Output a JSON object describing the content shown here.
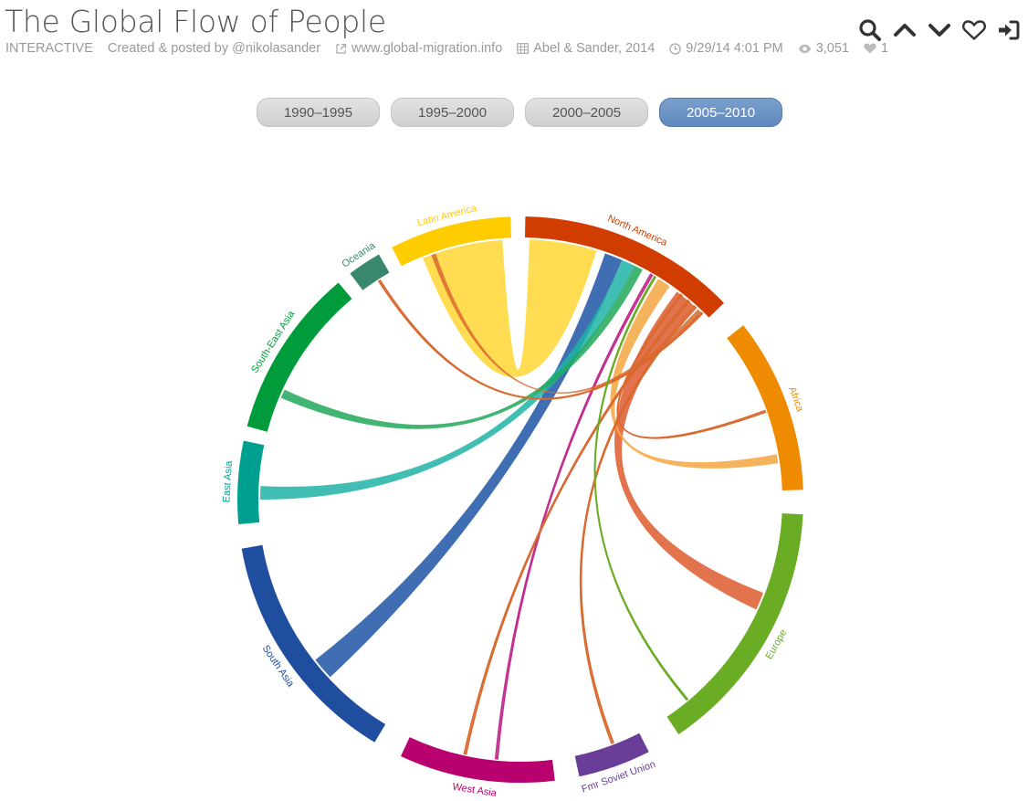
{
  "header": {
    "title": "The Global Flow of People",
    "type_label": "INTERACTIVE",
    "author": "Created & posted by @nikolasander",
    "website": "www.global-migration.info",
    "source": "Abel & Sander, 2014",
    "timestamp": "9/29/14 4:01 PM",
    "views": "3,051",
    "likes": "1"
  },
  "toolbar": {
    "icons": [
      "search-icon",
      "chevron-up-icon",
      "chevron-down-icon",
      "heart-icon",
      "sign-in-icon"
    ]
  },
  "periods": {
    "items": [
      {
        "label": "1990–1995"
      },
      {
        "label": "1995–2000"
      },
      {
        "label": "2000–2005"
      },
      {
        "label": "2005–2010"
      }
    ],
    "active": "2005–2010"
  },
  "chart": {
    "regions": [
      {
        "name": "North America",
        "color": "#d13d00",
        "start_deg": 1,
        "end_deg": 46
      },
      {
        "name": "Africa",
        "color": "#ee8b00",
        "start_deg": 52,
        "end_deg": 88
      },
      {
        "name": "Europe",
        "color": "#6aad25",
        "start_deg": 93,
        "end_deg": 146
      },
      {
        "name": "Fmr Soviet Union",
        "color": "#6a3d99",
        "start_deg": 153,
        "end_deg": 168
      },
      {
        "name": "West Asia",
        "color": "#b8006e",
        "start_deg": 173,
        "end_deg": 205
      },
      {
        "name": "South Asia",
        "color": "#1f4e9e",
        "start_deg": 211,
        "end_deg": 260
      },
      {
        "name": "East Asia",
        "color": "#00a090",
        "start_deg": 265,
        "end_deg": 282
      },
      {
        "name": "South-East Asia",
        "color": "#009c3b",
        "start_deg": 285,
        "end_deg": 320
      },
      {
        "name": "Oceania",
        "color": "#3a8770",
        "start_deg": 323,
        "end_deg": 330
      },
      {
        "name": "Latin America",
        "color": "#ffcc00",
        "start_deg": 333,
        "end_deg": 358
      }
    ],
    "flows": [
      {
        "from": "Latin America",
        "to": "North America",
        "s0": 338,
        "s1": 356,
        "t0": 2,
        "t1": 17,
        "color": "#ffd633"
      },
      {
        "from": "South Asia",
        "to": "North America",
        "s0": 227,
        "s1": 232,
        "t0": 19,
        "t1": 23,
        "color": "#1f55a6"
      },
      {
        "from": "East Asia",
        "to": "North America",
        "s0": 270,
        "s1": 273,
        "t0": 23,
        "t1": 26,
        "color": "#1fb3a6"
      },
      {
        "from": "South-East Asia",
        "to": "North America",
        "s0": 293,
        "s1": 295,
        "t0": 26,
        "t1": 28,
        "color": "#22a85a"
      },
      {
        "from": "North America",
        "to": "Europe",
        "s0": 37,
        "s1": 42,
        "t0": 111,
        "t1": 115,
        "color": "#de5a2e"
      },
      {
        "from": "North America",
        "to": "Africa",
        "s0": 32,
        "s1": 35,
        "t0": 80,
        "t1": 82,
        "color": "#f2a640"
      },
      {
        "from": "West Asia",
        "to": "North America",
        "s0": 185,
        "s1": 185.5,
        "t0": 30,
        "t1": 30.5,
        "color": "#c22c8e"
      },
      {
        "from": "North America",
        "to": "West Asia",
        "s0": 40,
        "s1": 40.5,
        "t0": 192,
        "t1": 192.5,
        "color": "#d9692f"
      },
      {
        "from": "North America",
        "to": "Fmr Soviet Union",
        "s0": 42,
        "s1": 42.5,
        "t0": 159,
        "t1": 159.5,
        "color": "#d9692f"
      },
      {
        "from": "North America",
        "to": "Latin America",
        "s0": 43,
        "s1": 44,
        "t0": 340,
        "t1": 341,
        "color": "#d9692f"
      },
      {
        "from": "North America",
        "to": "Oceania",
        "s0": 44,
        "s1": 44.4,
        "t0": 327,
        "t1": 327.4,
        "color": "#d9692f"
      },
      {
        "from": "North America",
        "to": "Africa",
        "s0": 38,
        "s1": 38.4,
        "t0": 70,
        "t1": 70.4,
        "color": "#d9692f"
      },
      {
        "from": "Europe",
        "to": "North America",
        "s0": 140,
        "s1": 140.3,
        "t0": 31,
        "t1": 31.3,
        "color": "#6aad25"
      }
    ]
  }
}
